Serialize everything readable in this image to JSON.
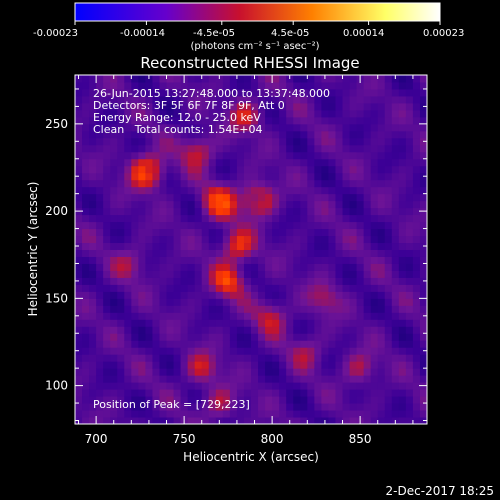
{
  "colorbar": {
    "tick_labels": [
      "-0.00023",
      "-0.00014",
      "-4.5e-05",
      "4.5e-05",
      "0.00014",
      "0.00023"
    ],
    "tick_values": [
      -0.00023,
      -0.00014,
      -4.5e-05,
      4.5e-05,
      0.00014,
      0.00023
    ],
    "units_label": "(photons cm⁻² s⁻¹ asec⁻²)",
    "range": [
      -0.00023,
      0.00023
    ],
    "colors": [
      "#0000ff",
      "#6600cc",
      "#c8102e",
      "#ff8000",
      "#ffff66",
      "#ffffff"
    ]
  },
  "footer_date": "2-Dec-2017 18:25",
  "chart_data": {
    "type": "heatmap",
    "title": "Reconstructed RHESSI Image",
    "xlabel": "Heliocentric X (arcsec)",
    "ylabel": "Heliocentric Y (arcsec)",
    "xlim": [
      688,
      888
    ],
    "ylim": [
      78,
      278
    ],
    "x_ticks": [
      700,
      750,
      800,
      850
    ],
    "y_ticks": [
      100,
      150,
      200,
      250
    ],
    "x_tick_labels": [
      "700",
      "750",
      "800",
      "850"
    ],
    "y_tick_labels": [
      "100",
      "150",
      "200",
      "250"
    ],
    "annotations": [
      "26-Jun-2015 13:27:48.000 to 13:37:48.000",
      "Detectors: 3F 5F 6F 7F 8F 9F, Att 0",
      "Energy Range: 12.0 - 25.0 keV",
      "Clean   Total counts: 1.54E+04"
    ],
    "peak_label": "Position of Peak = [729,223]",
    "peak_position": [
      729,
      223
    ],
    "grid": false,
    "sources": [
      {
        "x": 729,
        "y": 223,
        "peak": 0.00023
      },
      {
        "x": 770,
        "y": 205,
        "peak": 0.00019
      },
      {
        "x": 792,
        "y": 207,
        "peak": 0.00018
      },
      {
        "x": 780,
        "y": 180,
        "peak": 0.00016
      },
      {
        "x": 775,
        "y": 160,
        "peak": 0.00015
      },
      {
        "x": 758,
        "y": 235,
        "peak": 0.00013
      },
      {
        "x": 785,
        "y": 255,
        "peak": 0.00012
      },
      {
        "x": 800,
        "y": 140,
        "peak": 0.00011
      },
      {
        "x": 760,
        "y": 110,
        "peak": 0.00011
      },
      {
        "x": 770,
        "y": 90,
        "peak": 0.0001
      },
      {
        "x": 850,
        "y": 110,
        "peak": 0.0001
      },
      {
        "x": 830,
        "y": 150,
        "peak": 9e-05
      },
      {
        "x": 820,
        "y": 120,
        "peak": 8e-05
      },
      {
        "x": 720,
        "y": 170,
        "peak": 8e-05
      }
    ]
  }
}
